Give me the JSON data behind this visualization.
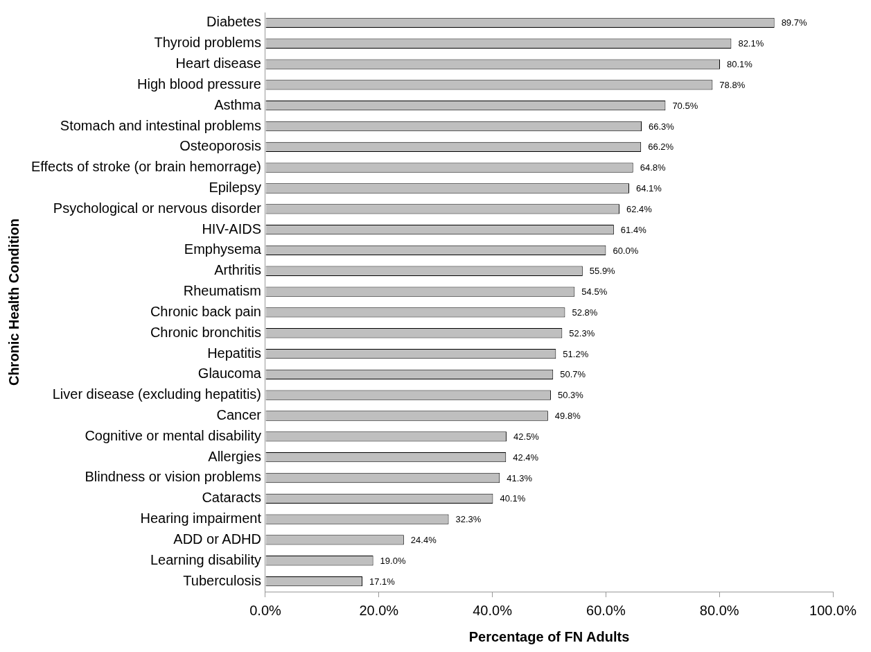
{
  "chart_data": {
    "type": "bar",
    "orientation": "horizontal",
    "xlabel": "Percentage of FN Adults",
    "ylabel": "Chronic Health Condition",
    "categories": [
      "Diabetes",
      "Thyroid problems",
      "Heart disease",
      "High blood pressure",
      "Asthma",
      "Stomach and intestinal problems",
      "Osteoporosis",
      "Effects of stroke (or brain hemorrage)",
      "Epilepsy",
      "Psychological or nervous disorder",
      "HIV-AIDS",
      "Emphysema",
      "Arthritis",
      "Rheumatism",
      "Chronic back pain",
      "Chronic bronchitis",
      "Hepatitis",
      "Glaucoma",
      "Liver disease (excluding hepatitis)",
      "Cancer",
      "Cognitive or mental disability",
      "Allergies",
      "Blindness or vision problems",
      "Cataracts",
      "Hearing impairment",
      "ADD or ADHD",
      "Learning disability",
      "Tuberculosis"
    ],
    "values": [
      89.7,
      82.1,
      80.1,
      78.8,
      70.5,
      66.3,
      66.2,
      64.8,
      64.1,
      62.4,
      61.4,
      60.0,
      55.9,
      54.5,
      52.8,
      52.3,
      51.2,
      50.7,
      50.3,
      49.8,
      42.5,
      42.4,
      41.3,
      40.1,
      32.3,
      24.4,
      19.0,
      17.1
    ],
    "value_labels": [
      "89.7%",
      "82.1%",
      "80.1%",
      "78.8%",
      "70.5%",
      "66.3%",
      "66.2%",
      "64.8%",
      "64.1%",
      "62.4%",
      "61.4%",
      "60.0%",
      "55.9%",
      "54.5%",
      "52.8%",
      "52.3%",
      "51.2%",
      "50.7%",
      "50.3%",
      "49.8%",
      "42.5%",
      "42.4%",
      "41.3%",
      "40.1%",
      "32.3%",
      "24.4%",
      "19.0%",
      "17.1%"
    ],
    "color": "#bfbfbf",
    "xlim": [
      0,
      100
    ],
    "xticks": [
      {
        "value": 0,
        "label": "0.0%"
      },
      {
        "value": 20,
        "label": "20.0%"
      },
      {
        "value": 40,
        "label": "40.0%"
      },
      {
        "value": 60,
        "label": "60.0%"
      },
      {
        "value": 80,
        "label": "80.0%"
      },
      {
        "value": 100,
        "label": "100.0%"
      }
    ],
    "grid": false,
    "legend": false
  }
}
